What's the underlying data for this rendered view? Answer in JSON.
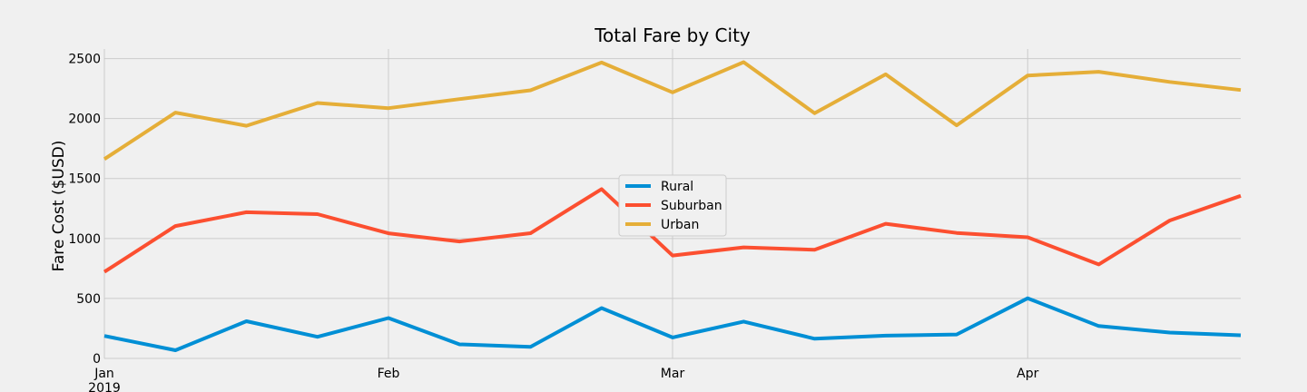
{
  "chart_data": {
    "type": "line",
    "title": "Total Fare by City",
    "xlabel": "",
    "ylabel": "Fare Cost ($USD)",
    "ylim": [
      0,
      2580
    ],
    "yticks": [
      0,
      500,
      1000,
      1500,
      2000,
      2500
    ],
    "xlim": [
      0,
      16
    ],
    "xticks": [
      {
        "pos": 0,
        "label": "Jan",
        "sublabel": "2019"
      },
      {
        "pos": 4,
        "label": "Feb",
        "sublabel": ""
      },
      {
        "pos": 8,
        "label": "Mar",
        "sublabel": ""
      },
      {
        "pos": 13,
        "label": "Apr",
        "sublabel": ""
      }
    ],
    "grid": true,
    "legend_position": "center",
    "series": [
      {
        "name": "Rural",
        "color": "#008fd5",
        "values": [
          188,
          68,
          310,
          180,
          337,
          117,
          97,
          420,
          175,
          307,
          164,
          190,
          200,
          502,
          270,
          216,
          193
        ]
      },
      {
        "name": "Suburban",
        "color": "#fc4f30",
        "values": [
          722,
          1104,
          1219,
          1203,
          1043,
          975,
          1044,
          1412,
          858,
          926,
          906,
          1123,
          1046,
          1010,
          784,
          1150,
          1356
        ]
      },
      {
        "name": "Urban",
        "color": "#e5ae38",
        "values": [
          1662,
          2050,
          1940,
          2130,
          2087,
          2162,
          2236,
          2467,
          2218,
          2470,
          2044,
          2369,
          1944,
          2359,
          2390,
          2305,
          2238
        ]
      }
    ]
  }
}
